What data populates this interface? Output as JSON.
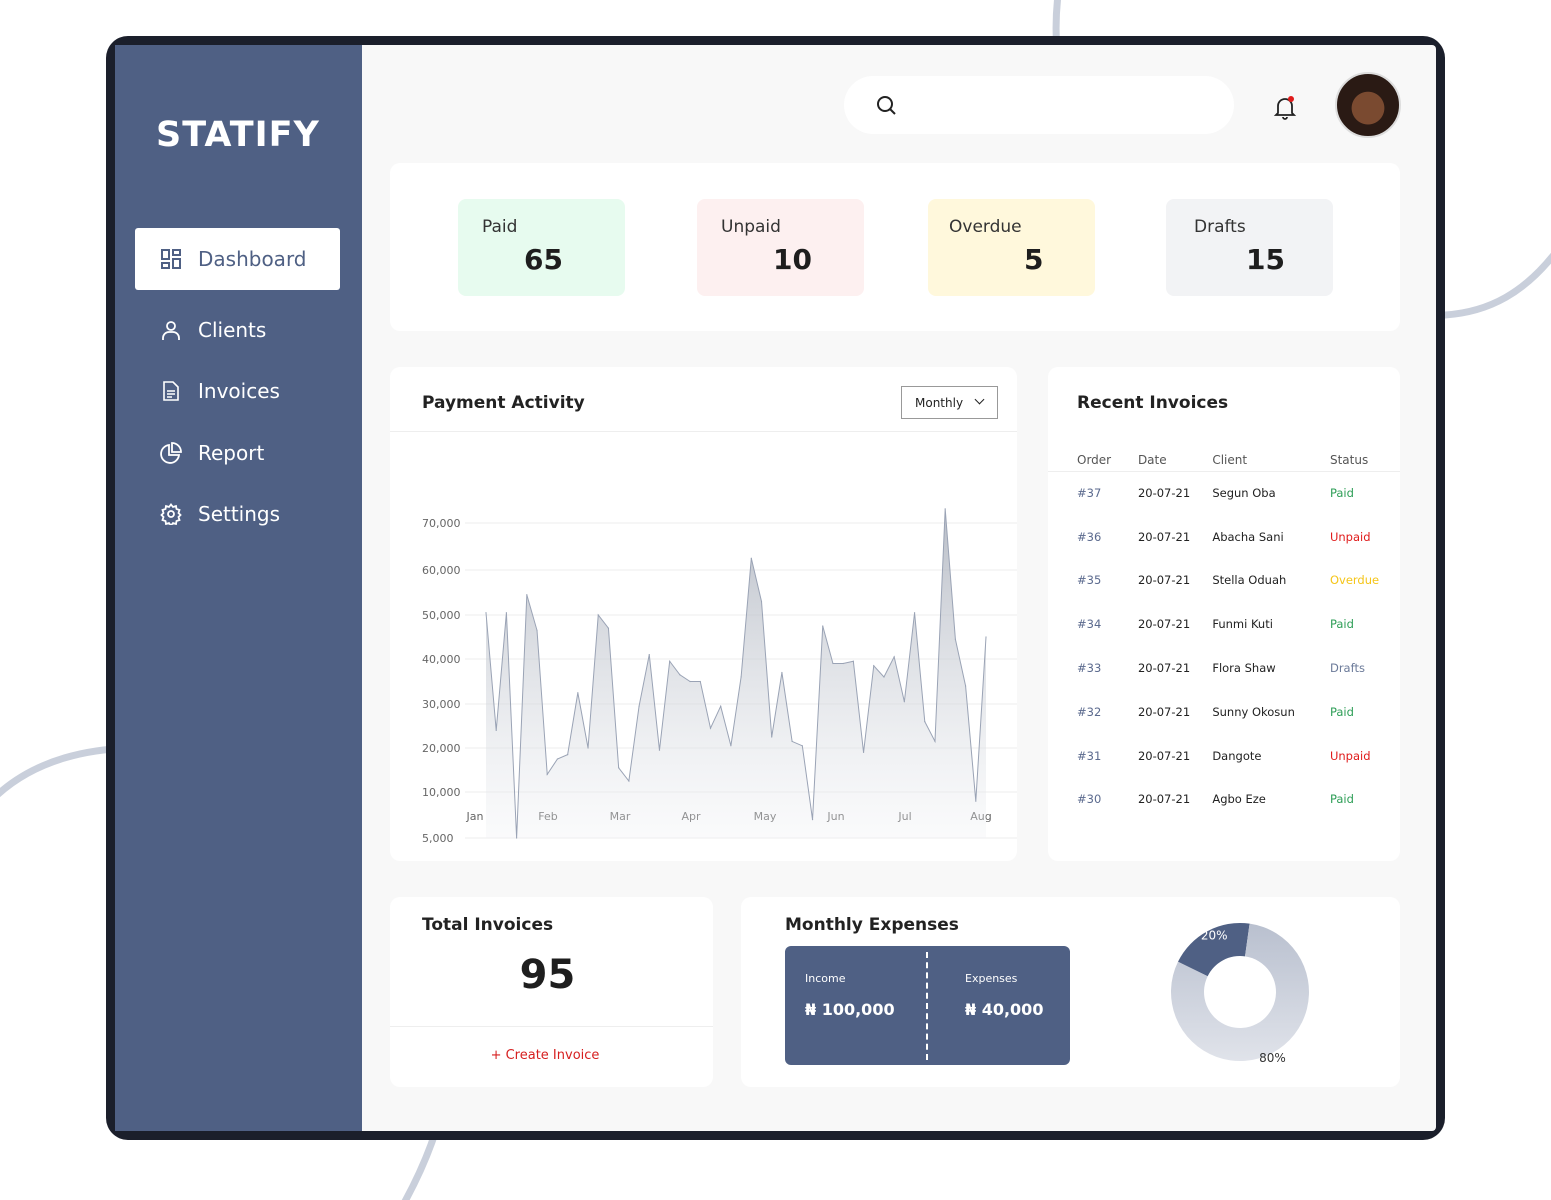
{
  "app": {
    "name": "STATIFY"
  },
  "sidebar": {
    "items": [
      {
        "label": "Dashboard",
        "icon": "dashboard-icon"
      },
      {
        "label": "Clients",
        "icon": "user-icon"
      },
      {
        "label": "Invoices",
        "icon": "document-icon"
      },
      {
        "label": "Report",
        "icon": "pie-chart-icon"
      },
      {
        "label": "Settings",
        "icon": "gear-icon"
      }
    ]
  },
  "header": {
    "search_placeholder": ""
  },
  "stats": [
    {
      "label": "Paid",
      "value": "65",
      "color": "#e7fbef"
    },
    {
      "label": "Unpaid",
      "value": "10",
      "color": "#fdf0f0"
    },
    {
      "label": "Overdue",
      "value": "5",
      "color": "#fff8dc"
    },
    {
      "label": "Drafts",
      "value": "15",
      "color": "#f2f3f5"
    }
  ],
  "payment_activity": {
    "title": "Payment Activity",
    "period": "Monthly"
  },
  "chart_data": {
    "type": "area",
    "xlabel": "",
    "ylabel": "",
    "x_tick_labels": [
      "Jan",
      "Feb",
      "Mar",
      "Apr",
      "May",
      "Jun",
      "Jul",
      "Aug"
    ],
    "y_tick_labels": [
      "5,000",
      "10,000",
      "20,000",
      "30,000",
      "40,000",
      "50,000",
      "60,000",
      "70,000"
    ],
    "y_ticks": [
      5000,
      10000,
      20000,
      30000,
      40000,
      50000,
      60000,
      70000
    ],
    "grid": true,
    "values": [
      50500,
      24000,
      50500,
      5000,
      54500,
      46500,
      14000,
      17500,
      18500,
      32500,
      20000,
      50000,
      47000,
      15500,
      12500,
      29500,
      41000,
      19500,
      39500,
      36500,
      35000,
      35000,
      24500,
      29500,
      20500,
      36000,
      62500,
      53000,
      22500,
      37000,
      21500,
      20500,
      7000,
      47500,
      39000,
      39000,
      39500,
      19000,
      38500,
      36000,
      40500,
      30500,
      50500,
      26000,
      21500,
      73000,
      44500,
      34000,
      9000,
      45000
    ]
  },
  "recent_invoices": {
    "title": "Recent Invoices",
    "columns": [
      "Order",
      "Date",
      "Client",
      "Status"
    ],
    "rows": [
      [
        "#37",
        "20-07-21",
        "Segun Oba",
        "Paid"
      ],
      [
        "#36",
        "20-07-21",
        "Abacha Sani",
        "Unpaid"
      ],
      [
        "#35",
        "20-07-21",
        "Stella Oduah",
        "Overdue"
      ],
      [
        "#34",
        "20-07-21",
        "Funmi Kuti",
        "Paid"
      ],
      [
        "#33",
        "20-07-21",
        "Flora Shaw",
        "Drafts"
      ],
      [
        "#32",
        "20-07-21",
        "Sunny Okosun",
        "Paid"
      ],
      [
        "#31",
        "20-07-21",
        "Dangote",
        "Unpaid"
      ],
      [
        "#30",
        "20-07-21",
        "Agbo Eze",
        "Paid"
      ]
    ],
    "status_colors": {
      "Paid": "#2e9e57",
      "Unpaid": "#e01b1b",
      "Overdue": "#f5c518",
      "Drafts": "#6b7a99"
    }
  },
  "total_invoices": {
    "title": "Total Invoices",
    "value": "95",
    "action": "+ Create Invoice"
  },
  "monthly_expenses": {
    "title": "Monthly Expenses",
    "income_label": "Income",
    "income_value": "₦ 100,000",
    "expenses_label": "Expenses",
    "expenses_value": "₦ 40,000",
    "donut": {
      "type": "pie",
      "slices": [
        {
          "label": "20%",
          "value": 20,
          "color": "#4f6084"
        },
        {
          "label": "80%",
          "value": 80,
          "color": "#c5cbd8"
        }
      ]
    }
  }
}
